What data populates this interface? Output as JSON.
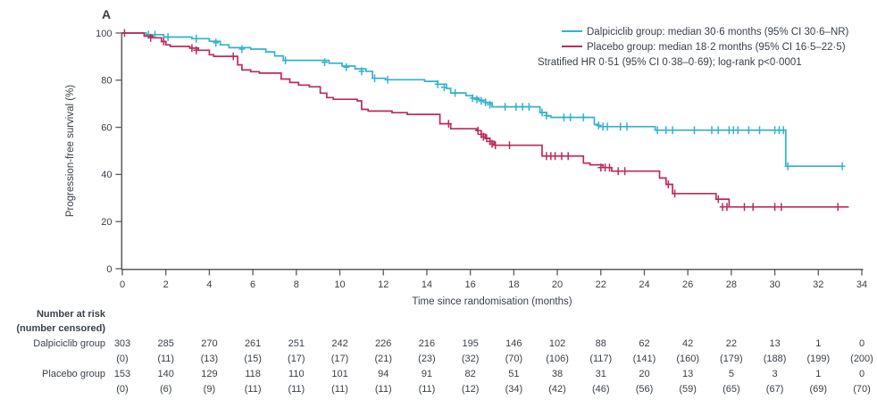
{
  "panel_label": "A",
  "colors": {
    "dalpiciclib": "#31b2ce",
    "placebo": "#bd2a5c",
    "text": "#3a4049",
    "axis": "#595a5e"
  },
  "chart_data": {
    "type": "line",
    "subtype": "kaplan_meier_step",
    "title": "",
    "xlabel": "Time since randomisation (months)",
    "ylabel": "Progression-free survival (%)",
    "xlim": [
      0,
      34
    ],
    "ylim": [
      0,
      100
    ],
    "xticks": [
      0,
      2,
      4,
      6,
      8,
      10,
      12,
      14,
      16,
      18,
      20,
      22,
      24,
      26,
      28,
      30,
      32,
      34
    ],
    "yticks": [
      0,
      20,
      40,
      60,
      80,
      100
    ],
    "grid": false,
    "legend_position": "top-right",
    "hr_note": "Stratified HR 0·51 (95% CI 0·38–0·69); log-rank p<0·0001",
    "series": [
      {
        "name": "Dalpiciclib group",
        "legend_label": "Dalpiciclib group: median 30·6 months (95% CI 30·6–NR)",
        "median_months": 30.6,
        "ci": "30·6–NR",
        "color": "#31b2ce",
        "steps": [
          [
            0,
            100
          ],
          [
            1.1,
            99.3
          ],
          [
            1.9,
            98.3
          ],
          [
            3.2,
            97.6
          ],
          [
            4,
            96.5
          ],
          [
            4.5,
            95
          ],
          [
            4.9,
            93.8
          ],
          [
            5.9,
            93.2
          ],
          [
            6.6,
            92
          ],
          [
            7,
            90.3
          ],
          [
            7.4,
            88.4
          ],
          [
            9.5,
            87.2
          ],
          [
            10.1,
            86
          ],
          [
            10.7,
            84.8
          ],
          [
            11.2,
            83.8
          ],
          [
            11.5,
            80.8
          ],
          [
            12.1,
            80.2
          ],
          [
            13.9,
            79.5
          ],
          [
            14.5,
            78.3
          ],
          [
            14.9,
            76.5
          ],
          [
            15.1,
            74.6
          ],
          [
            15.8,
            73.4
          ],
          [
            16.1,
            72.4
          ],
          [
            16.4,
            71.5
          ],
          [
            16.7,
            70.4
          ],
          [
            17,
            68.7
          ],
          [
            19.2,
            66.3
          ],
          [
            19.5,
            64.8
          ],
          [
            19.7,
            64.2
          ],
          [
            21.7,
            61.2
          ],
          [
            21.9,
            60.3
          ],
          [
            24.5,
            58.8
          ],
          [
            30.5,
            43.5
          ],
          [
            33.1,
            43.5
          ]
        ],
        "censors": [
          [
            1.2,
            99.3
          ],
          [
            1.5,
            99.3
          ],
          [
            2.1,
            98.3
          ],
          [
            3.4,
            97.6
          ],
          [
            4.3,
            95.9
          ],
          [
            5.5,
            93.2
          ],
          [
            7.5,
            88.4
          ],
          [
            9.3,
            87.6
          ],
          [
            10.3,
            85.5
          ],
          [
            11,
            83.8
          ],
          [
            11.6,
            80.8
          ],
          [
            12.2,
            80.2
          ],
          [
            14.5,
            78.3
          ],
          [
            14.8,
            77
          ],
          [
            15.3,
            74.6
          ],
          [
            16.1,
            72.4
          ],
          [
            16.3,
            71.8
          ],
          [
            16.5,
            71.2
          ],
          [
            16.7,
            70.6
          ],
          [
            16.9,
            69.6
          ],
          [
            17.6,
            68.7
          ],
          [
            18.1,
            68.7
          ],
          [
            18.4,
            68.7
          ],
          [
            18.7,
            68.7
          ],
          [
            19.3,
            66.3
          ],
          [
            19.5,
            65
          ],
          [
            20.3,
            64.2
          ],
          [
            20.6,
            64.2
          ],
          [
            21.2,
            64.2
          ],
          [
            21.9,
            60.8
          ],
          [
            22.1,
            60.3
          ],
          [
            22.3,
            60.3
          ],
          [
            22.9,
            60.3
          ],
          [
            23.2,
            60.3
          ],
          [
            24.6,
            58.8
          ],
          [
            25,
            58.8
          ],
          [
            25.3,
            58.8
          ],
          [
            26.3,
            58.8
          ],
          [
            27.1,
            58.8
          ],
          [
            27.4,
            58.8
          ],
          [
            27.9,
            58.8
          ],
          [
            28.1,
            58.8
          ],
          [
            28.3,
            58.8
          ],
          [
            28.8,
            58.8
          ],
          [
            29.3,
            58.8
          ],
          [
            30,
            58.8
          ],
          [
            30.2,
            58.8
          ],
          [
            30.4,
            58.8
          ],
          [
            30.6,
            43.5
          ],
          [
            33.1,
            43.5
          ]
        ]
      },
      {
        "name": "Placebo group",
        "legend_label": "Placebo group: median 18·2 months (95% CI 16·5–22·5)",
        "median_months": 18.2,
        "ci": "16·5–22·5",
        "color": "#bd2a5c",
        "steps": [
          [
            0,
            100
          ],
          [
            1,
            98.7
          ],
          [
            1.4,
            98
          ],
          [
            1.8,
            96.4
          ],
          [
            2,
            95
          ],
          [
            2.2,
            94.3
          ],
          [
            3.1,
            93.6
          ],
          [
            3.5,
            92.7
          ],
          [
            4,
            90.8
          ],
          [
            4.2,
            90.1
          ],
          [
            5.3,
            86.5
          ],
          [
            5.5,
            84.3
          ],
          [
            5.9,
            83.6
          ],
          [
            6.3,
            83
          ],
          [
            7.3,
            80.5
          ],
          [
            7.7,
            79
          ],
          [
            8.1,
            77.9
          ],
          [
            8.6,
            77.2
          ],
          [
            9.1,
            74.5
          ],
          [
            9.4,
            72.6
          ],
          [
            9.7,
            71.9
          ],
          [
            10.8,
            71.2
          ],
          [
            11,
            67.6
          ],
          [
            11.3,
            66.9
          ],
          [
            12.4,
            66.2
          ],
          [
            13.1,
            65.5
          ],
          [
            14.6,
            61.5
          ],
          [
            15.1,
            59.4
          ],
          [
            16.3,
            58.6
          ],
          [
            16.5,
            57
          ],
          [
            16.7,
            55.3
          ],
          [
            16.9,
            54
          ],
          [
            17.1,
            52.4
          ],
          [
            19.3,
            47.8
          ],
          [
            21.2,
            44.8
          ],
          [
            21.5,
            44.1
          ],
          [
            22.1,
            42.9
          ],
          [
            22.5,
            41.4
          ],
          [
            24.7,
            38.5
          ],
          [
            25,
            35.8
          ],
          [
            25.3,
            31.9
          ],
          [
            27.3,
            29.5
          ],
          [
            27.9,
            26.2
          ],
          [
            33.4,
            26.2
          ]
        ],
        "censors": [
          [
            0.1,
            100
          ],
          [
            1.3,
            98
          ],
          [
            1.9,
            96.4
          ],
          [
            3.2,
            93.6
          ],
          [
            3.4,
            92.7
          ],
          [
            5.1,
            90.1
          ],
          [
            15,
            61.5
          ],
          [
            16.35,
            58.6
          ],
          [
            16.5,
            57
          ],
          [
            16.6,
            56
          ],
          [
            16.75,
            55.3
          ],
          [
            16.9,
            54
          ],
          [
            17,
            53
          ],
          [
            17.15,
            52.4
          ],
          [
            17.8,
            52.4
          ],
          [
            19.5,
            47.8
          ],
          [
            19.7,
            47.8
          ],
          [
            19.9,
            47.8
          ],
          [
            20.2,
            47.8
          ],
          [
            20.5,
            47.8
          ],
          [
            22,
            42.9
          ],
          [
            22.2,
            42.9
          ],
          [
            22.4,
            42.9
          ],
          [
            22.8,
            41.4
          ],
          [
            23.1,
            41.4
          ],
          [
            25.1,
            35.8
          ],
          [
            25.4,
            31.9
          ],
          [
            27.4,
            29.5
          ],
          [
            27.6,
            26.2
          ],
          [
            27.8,
            26.2
          ],
          [
            28.6,
            26.2
          ],
          [
            29,
            26.2
          ],
          [
            30,
            26.2
          ],
          [
            30.3,
            26.2
          ],
          [
            32.9,
            26.2
          ]
        ]
      }
    ]
  },
  "risk_table": {
    "title_line1": "Number at risk",
    "title_line2": "(number censored)",
    "months": [
      0,
      2,
      4,
      6,
      8,
      10,
      12,
      14,
      16,
      18,
      20,
      22,
      24,
      26,
      28,
      30,
      32,
      34
    ],
    "rows": [
      {
        "label": "Dalpiciclib group",
        "at_risk": [
          "303",
          "285",
          "270",
          "261",
          "251",
          "242",
          "226",
          "216",
          "195",
          "146",
          "102",
          "88",
          "62",
          "42",
          "22",
          "13",
          "1",
          "0"
        ],
        "censored": [
          "(0)",
          "(11)",
          "(13)",
          "(15)",
          "(17)",
          "(17)",
          "(21)",
          "(23)",
          "(32)",
          "(70)",
          "(106)",
          "(117)",
          "(141)",
          "(160)",
          "(179)",
          "(188)",
          "(199)",
          "(200)"
        ]
      },
      {
        "label": "Placebo group",
        "at_risk": [
          "153",
          "140",
          "129",
          "118",
          "110",
          "101",
          "94",
          "91",
          "82",
          "51",
          "38",
          "31",
          "20",
          "13",
          "5",
          "3",
          "1",
          "0"
        ],
        "censored": [
          "(0)",
          "(6)",
          "(9)",
          "(11)",
          "(11)",
          "(11)",
          "(11)",
          "(11)",
          "(12)",
          "(34)",
          "(42)",
          "(46)",
          "(56)",
          "(59)",
          "(65)",
          "(67)",
          "(69)",
          "(70)"
        ]
      }
    ]
  }
}
